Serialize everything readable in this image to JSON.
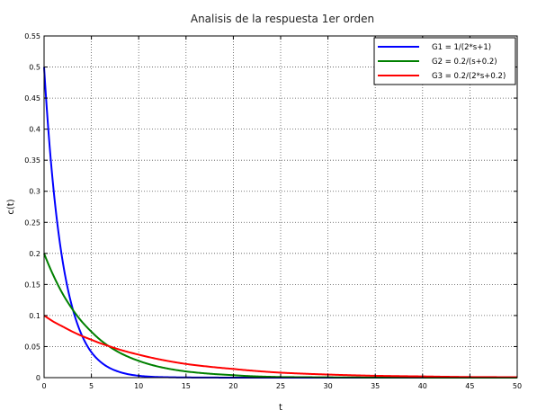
{
  "chart_data": {
    "type": "line",
    "title": "Analisis de la respuesta 1er orden",
    "xlabel": "t",
    "ylabel": "c(t)",
    "xlim": [
      0,
      50
    ],
    "ylim": [
      0,
      0.55
    ],
    "x_ticks": [
      "0",
      "5",
      "10",
      "15",
      "20",
      "25",
      "30",
      "35",
      "40",
      "45",
      "50"
    ],
    "y_ticks": [
      "0",
      "0.05",
      "0.1",
      "0.15",
      "0.2",
      "0.25",
      "0.3",
      "0.35",
      "0.4",
      "0.45",
      "0.5",
      "0.55"
    ],
    "grid": true,
    "legend_position": "top-right",
    "x": [
      0,
      1,
      2,
      3,
      4,
      5,
      6,
      7,
      8,
      10,
      12,
      15,
      20,
      25,
      30,
      35,
      40,
      45,
      50
    ],
    "series": [
      {
        "name": "G1 = 1/(2*s+1)",
        "color": "#0000ff",
        "values": [
          0.5,
          0.303,
          0.184,
          0.112,
          0.068,
          0.041,
          0.025,
          0.015,
          0.009,
          0.003,
          0.001,
          0.0003,
          0.0,
          0.0,
          0.0,
          0.0,
          0.0,
          0.0,
          0.0
        ]
      },
      {
        "name": "G2 = 0.2/(s+0.2)",
        "color": "#008000",
        "values": [
          0.2,
          0.164,
          0.134,
          0.11,
          0.09,
          0.074,
          0.06,
          0.049,
          0.04,
          0.027,
          0.018,
          0.01,
          0.004,
          0.001,
          0.0005,
          0.0002,
          0.0001,
          0.0,
          0.0
        ]
      },
      {
        "name": "G3 = 0.2/(2*s+0.2)",
        "color": "#ff0000",
        "values": [
          0.1,
          0.09,
          0.082,
          0.074,
          0.067,
          0.061,
          0.055,
          0.05,
          0.045,
          0.037,
          0.03,
          0.022,
          0.014,
          0.008,
          0.005,
          0.003,
          0.002,
          0.001,
          0.0007
        ]
      }
    ]
  }
}
